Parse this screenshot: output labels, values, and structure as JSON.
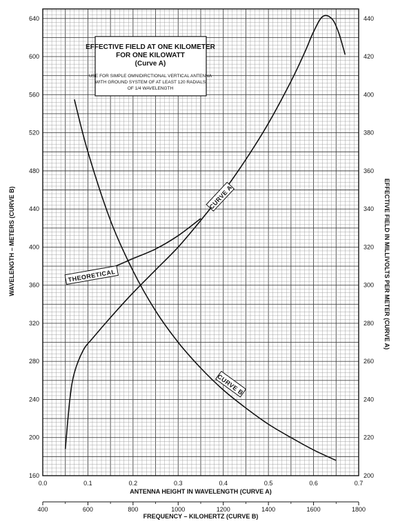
{
  "chart_data": {
    "type": "line",
    "title": [
      "EFFECTIVE FIELD AT ONE KILOMETER",
      "FOR ONE KILOWATT",
      "(Curve A)"
    ],
    "note": [
      "USE FOR SIMPLE OMNIDIRCTIONAL VERTICAL ANTENNA",
      "WITH GROUND SYSTEM OF AT LEAST 120 RADIALS",
      "OF 1/4 WAVELENGTH"
    ],
    "x_axis": {
      "label": "ANTENNA HEIGHT IN WAVELENGTH (CURVE A)",
      "range": [
        0.0,
        0.7
      ],
      "ticks": [
        "0.0",
        "0.1",
        "0.2",
        "0.3",
        "0.4",
        "0.5",
        "0.6",
        "0.7"
      ]
    },
    "x2_axis": {
      "label": "FREQUENCY – KILOHERTZ (CURVE B)",
      "range": [
        400,
        1800
      ],
      "ticks": [
        "400",
        "600",
        "800",
        "1000",
        "1200",
        "1400",
        "1600",
        "1800"
      ]
    },
    "y_left": {
      "label": "WAVELENGTH – METERS (CURVE B)",
      "range": [
        160,
        650
      ],
      "ticks": [
        "160",
        "200",
        "240",
        "280",
        "320",
        "360",
        "400",
        "440",
        "480",
        "520",
        "560",
        "600",
        "640"
      ]
    },
    "y_right": {
      "label": "EFFECTIVE FIELD IN MILLIVOLTS PER METER (CURVE A)",
      "range": [
        200,
        445
      ],
      "ticks": [
        "200",
        "220",
        "240",
        "260",
        "280",
        "300",
        "320",
        "340",
        "360",
        "380",
        "400",
        "420",
        "440"
      ]
    },
    "grid": true,
    "series": [
      {
        "name": "CURVE A",
        "axis": "x-height / y-right-field",
        "points": [
          [
            0.05,
            214
          ],
          [
            0.06,
            240
          ],
          [
            0.07,
            254
          ],
          [
            0.09,
            266
          ],
          [
            0.11,
            272
          ],
          [
            0.15,
            283
          ],
          [
            0.2,
            296
          ],
          [
            0.25,
            308
          ],
          [
            0.3,
            320
          ],
          [
            0.35,
            334
          ],
          [
            0.4,
            349
          ],
          [
            0.45,
            366
          ],
          [
            0.5,
            385
          ],
          [
            0.55,
            407
          ],
          [
            0.58,
            422
          ],
          [
            0.6,
            433
          ],
          [
            0.62,
            441
          ],
          [
            0.64,
            440
          ],
          [
            0.655,
            433
          ],
          [
            0.67,
            421
          ]
        ]
      },
      {
        "name": "THEORETICAL",
        "axis": "x-height / y-right-field",
        "points": [
          [
            0.05,
            303
          ],
          [
            0.1,
            306
          ],
          [
            0.15,
            309
          ],
          [
            0.2,
            314
          ],
          [
            0.25,
            319
          ],
          [
            0.3,
            326
          ],
          [
            0.35,
            335
          ]
        ]
      },
      {
        "name": "CURVE B",
        "axis": "x2-frequency / y-left-wavelength",
        "points": [
          [
            540,
            555
          ],
          [
            600,
            500
          ],
          [
            700,
            428
          ],
          [
            800,
            375
          ],
          [
            900,
            333
          ],
          [
            1000,
            300
          ],
          [
            1100,
            273
          ],
          [
            1200,
            250
          ],
          [
            1300,
            231
          ],
          [
            1400,
            214
          ],
          [
            1500,
            200
          ],
          [
            1600,
            187
          ],
          [
            1700,
            176
          ]
        ]
      }
    ],
    "annotations": [
      "CURVE A",
      "THEORETICAL",
      "CURVE B"
    ]
  }
}
